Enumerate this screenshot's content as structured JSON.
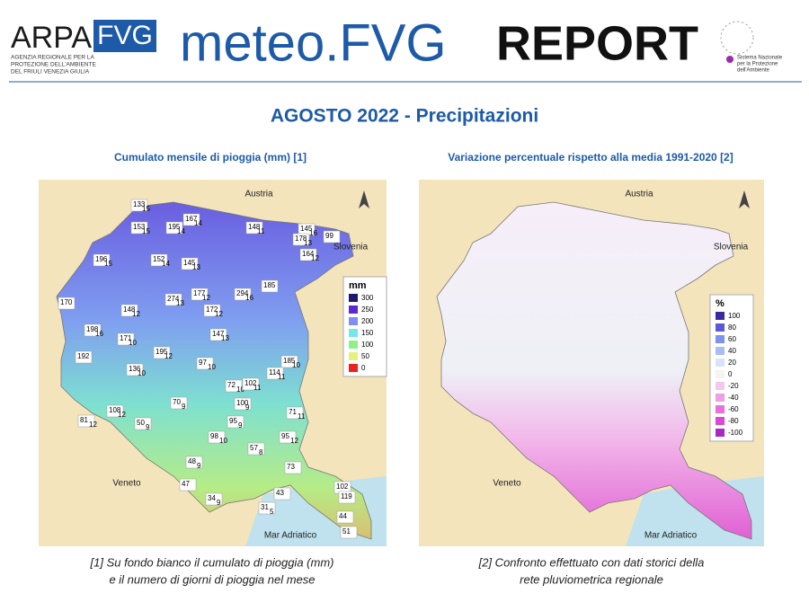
{
  "header": {
    "logo_main": "ARPA",
    "logo_fvg": "FVG",
    "agency_lines": [
      "AGENZIA REGIONALE PER LA",
      "PROTEZIONE DELL'AMBIENTE",
      "DEL FRIULI VENEZIA GIULIA"
    ],
    "brand": "meteo.FVG",
    "report": "REPORT",
    "snpa_lines": [
      "Sistema Nazionale",
      "per la Protezione",
      "dell'Ambiente"
    ]
  },
  "title": "AGOSTO 2022 - Precipitazioni",
  "left_map": {
    "subtitle": "Cumulato mensile di pioggia (mm) [1]",
    "places": [
      "Austria",
      "Slovenia",
      "Veneto",
      "Mar Adriatico"
    ],
    "legend": {
      "unit": "mm",
      "values": [
        300,
        250,
        200,
        150,
        100,
        50,
        0
      ],
      "colors": [
        "#1a1a6e",
        "#5a2ad0",
        "#7f8ef0",
        "#74e8e8",
        "#8ef08a",
        "#e2f27a",
        "#ee2020"
      ]
    },
    "stations": {
      "values": [
        133,
        167,
        153,
        195,
        148,
        145,
        178,
        99,
        196,
        152,
        145,
        164,
        185,
        170,
        274,
        177,
        294,
        148,
        172,
        198,
        171,
        147,
        192,
        195,
        136,
        97,
        185,
        114,
        72,
        102,
        100,
        70,
        108,
        81,
        50,
        95,
        71,
        98,
        95,
        57,
        48,
        73,
        47,
        34,
        43,
        102,
        119,
        31,
        44,
        51
      ],
      "days": [
        15,
        14,
        15,
        14,
        11,
        16,
        13,
        null,
        15,
        14,
        13,
        12,
        null,
        null,
        13,
        12,
        16,
        12,
        12,
        16,
        10,
        13,
        null,
        12,
        10,
        10,
        10,
        11,
        10,
        11,
        9,
        9,
        12,
        12,
        9,
        9,
        11,
        10,
        12,
        8,
        9,
        null,
        null,
        9,
        null,
        null,
        null,
        5,
        null,
        null
      ]
    },
    "note": [
      "[1] Su fondo bianco il cumulato di pioggia (mm)",
      "e il numero di giorni di pioggia nel mese"
    ]
  },
  "right_map": {
    "subtitle": "Variazione percentuale rispetto alla media 1991-2020 [2]",
    "places": [
      "Austria",
      "Slovenia",
      "Veneto",
      "Mar Adriatico"
    ],
    "legend": {
      "unit": "%",
      "values": [
        100,
        80,
        60,
        40,
        20,
        0,
        -20,
        -40,
        -60,
        -80,
        -100
      ],
      "colors": [
        "#3a2aa0",
        "#5a5ad8",
        "#7f90ee",
        "#aabcf4",
        "#d8e2f8",
        "#f4f4f4",
        "#f4c8ee",
        "#ee9ee6",
        "#e870dc",
        "#d84ad0",
        "#a82ac0"
      ]
    },
    "note": [
      "[2] Confronto effettuato con dati storici della",
      "rete pluviometrica regionale"
    ]
  }
}
